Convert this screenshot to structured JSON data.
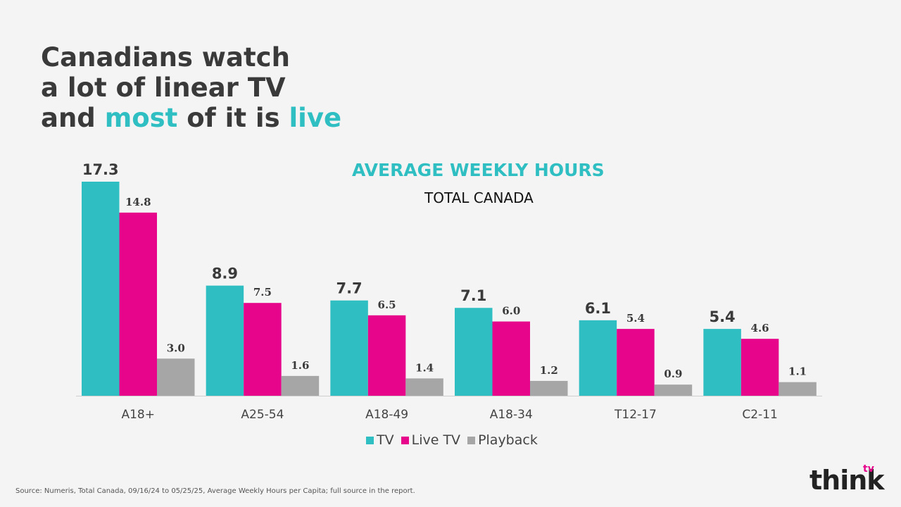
{
  "headline": {
    "line1": "Canadians watch",
    "line2": "a lot of linear TV",
    "line3_a": "and ",
    "line3_b": "most",
    "line3_c": " of it is ",
    "line3_d": "live"
  },
  "source_note": "Source: Numeris, Total Canada, 09/16/24 to 05/25/25, Average Weekly Hours per Capita; full source in the report.",
  "logo": {
    "text": "think",
    "sup": "tv"
  },
  "colors": {
    "tv": "#2fbfc2",
    "live_tv": "#e6058b",
    "playback": "#a6a6a6",
    "accent": "#2fbfc2"
  },
  "chart_data": {
    "type": "bar",
    "title": "AVERAGE WEEKLY HOURS",
    "subtitle": "TOTAL CANADA",
    "categories": [
      "A18+",
      "A25-54",
      "A18-49",
      "A18-34",
      "T12-17",
      "C2-11"
    ],
    "series": [
      {
        "name": "TV",
        "values": [
          17.3,
          8.9,
          7.7,
          7.1,
          6.1,
          5.4
        ]
      },
      {
        "name": "Live TV",
        "values": [
          14.8,
          7.5,
          6.5,
          6.0,
          5.4,
          4.6
        ]
      },
      {
        "name": "Playback",
        "values": [
          3.0,
          1.6,
          1.4,
          1.2,
          0.9,
          1.1
        ]
      }
    ],
    "ylim": [
      0,
      17.3
    ],
    "grid": false,
    "legend_placement": "bottom-center",
    "data_labels": true
  }
}
